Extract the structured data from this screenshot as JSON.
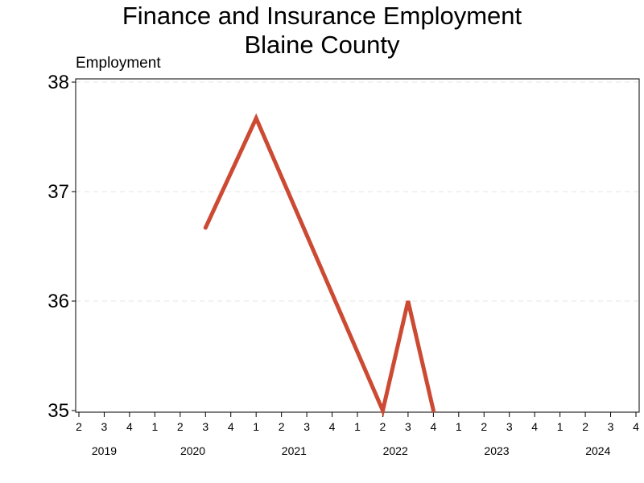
{
  "chart_data": {
    "type": "line",
    "title": "Finance and Insurance Employment",
    "subtitle": "Blaine County",
    "xlabel": "",
    "ylabel": "Employment",
    "x_ticks": [
      {
        "year": 2019,
        "quarter": 2
      },
      {
        "year": 2019,
        "quarter": 3
      },
      {
        "year": 2019,
        "quarter": 4
      },
      {
        "year": 2020,
        "quarter": 1
      },
      {
        "year": 2020,
        "quarter": 2
      },
      {
        "year": 2020,
        "quarter": 3
      },
      {
        "year": 2020,
        "quarter": 4
      },
      {
        "year": 2021,
        "quarter": 1
      },
      {
        "year": 2021,
        "quarter": 2
      },
      {
        "year": 2021,
        "quarter": 3
      },
      {
        "year": 2021,
        "quarter": 4
      },
      {
        "year": 2022,
        "quarter": 1
      },
      {
        "year": 2022,
        "quarter": 2
      },
      {
        "year": 2022,
        "quarter": 3
      },
      {
        "year": 2022,
        "quarter": 4
      },
      {
        "year": 2023,
        "quarter": 1
      },
      {
        "year": 2023,
        "quarter": 2
      },
      {
        "year": 2023,
        "quarter": 3
      },
      {
        "year": 2023,
        "quarter": 4
      },
      {
        "year": 2024,
        "quarter": 1
      },
      {
        "year": 2024,
        "quarter": 2
      },
      {
        "year": 2024,
        "quarter": 3
      },
      {
        "year": 2024,
        "quarter": 4
      }
    ],
    "year_labels": [
      "2019",
      "2020",
      "2021",
      "2022",
      "2023",
      "2024"
    ],
    "y_ticks": [
      35,
      36,
      37,
      38
    ],
    "ylim": [
      35,
      38
    ],
    "grid": "horizontal dashed",
    "series": [
      {
        "color": "#cc4a33",
        "points": [
          {
            "year": 2020,
            "quarter": 3,
            "value": 36.67
          },
          {
            "year": 2021,
            "quarter": 1,
            "value": 37.67
          },
          {
            "year": 2022,
            "quarter": 2,
            "value": 35.0
          },
          {
            "year": 2022,
            "quarter": 3,
            "value": 36.0
          },
          {
            "year": 2022,
            "quarter": 4,
            "value": 35.0
          }
        ]
      }
    ]
  }
}
